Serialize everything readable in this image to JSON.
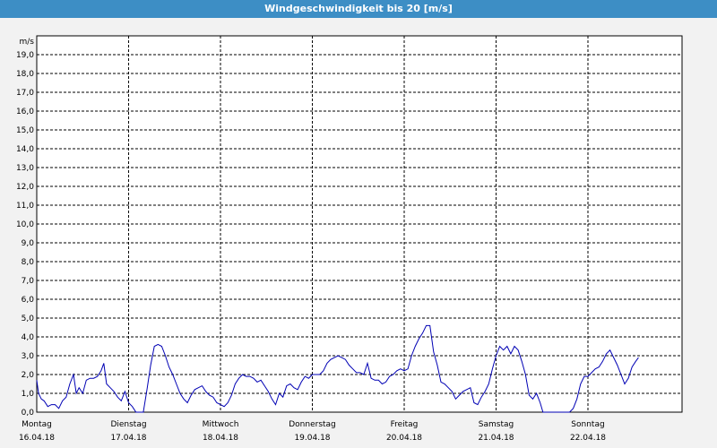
{
  "title": "Windgeschwindigkeit bis 20 [m/s]",
  "colors": {
    "titlebar": "#3d8ec5",
    "line": "#0000b4",
    "grid": "#000000",
    "plot_bg": "#ffffff"
  },
  "chart_data": {
    "type": "line",
    "title": "Windgeschwindigkeit bis 20 [m/s]",
    "ylabel": "m/s",
    "ylim": [
      0,
      20
    ],
    "yticks": [
      "0,0",
      "1,0",
      "2,0",
      "3,0",
      "4,0",
      "5,0",
      "6,0",
      "7,0",
      "8,0",
      "9,0",
      "10,0",
      "11,0",
      "12,0",
      "13,0",
      "14,0",
      "15,0",
      "16,0",
      "17,0",
      "18,0",
      "19,0"
    ],
    "grid": true,
    "xlim_days": [
      0,
      7
    ],
    "days": [
      {
        "weekday": "Montag",
        "date": "16.04.18"
      },
      {
        "weekday": "Dienstag",
        "date": "17.04.18"
      },
      {
        "weekday": "Mittwoch",
        "date": "18.04.18"
      },
      {
        "weekday": "Donnerstag",
        "date": "19.04.18"
      },
      {
        "weekday": "Freitag",
        "date": "20.04.18"
      },
      {
        "weekday": "Samstag",
        "date": "21.04.18"
      },
      {
        "weekday": "Sonntag",
        "date": "22.04.18"
      }
    ],
    "series": [
      {
        "points": [
          [
            0.0,
            1.7
          ],
          [
            0.02,
            1.0
          ],
          [
            0.05,
            0.7
          ],
          [
            0.08,
            0.6
          ],
          [
            0.12,
            0.3
          ],
          [
            0.16,
            0.4
          ],
          [
            0.2,
            0.4
          ],
          [
            0.24,
            0.2
          ],
          [
            0.28,
            0.6
          ],
          [
            0.32,
            0.8
          ],
          [
            0.36,
            1.5
          ],
          [
            0.4,
            2.0
          ],
          [
            0.43,
            1.0
          ],
          [
            0.46,
            1.3
          ],
          [
            0.5,
            1.0
          ],
          [
            0.54,
            1.7
          ],
          [
            0.58,
            1.8
          ],
          [
            0.62,
            1.8
          ],
          [
            0.66,
            1.9
          ],
          [
            0.7,
            2.2
          ],
          [
            0.73,
            2.6
          ],
          [
            0.76,
            1.5
          ],
          [
            0.8,
            1.3
          ],
          [
            0.84,
            1.1
          ],
          [
            0.88,
            0.8
          ],
          [
            0.92,
            0.6
          ],
          [
            0.96,
            1.1
          ],
          [
            1.0,
            0.5
          ],
          [
            1.04,
            0.3
          ],
          [
            1.08,
            0.0
          ],
          [
            1.12,
            0.0
          ],
          [
            1.16,
            0.0
          ],
          [
            1.2,
            1.2
          ],
          [
            1.24,
            2.5
          ],
          [
            1.28,
            3.5
          ],
          [
            1.32,
            3.6
          ],
          [
            1.36,
            3.5
          ],
          [
            1.4,
            3.0
          ],
          [
            1.44,
            2.4
          ],
          [
            1.48,
            2.0
          ],
          [
            1.52,
            1.5
          ],
          [
            1.56,
            1.0
          ],
          [
            1.6,
            0.7
          ],
          [
            1.64,
            0.5
          ],
          [
            1.68,
            0.9
          ],
          [
            1.72,
            1.2
          ],
          [
            1.76,
            1.3
          ],
          [
            1.8,
            1.4
          ],
          [
            1.84,
            1.1
          ],
          [
            1.88,
            0.9
          ],
          [
            1.92,
            0.8
          ],
          [
            1.96,
            0.5
          ],
          [
            2.0,
            0.4
          ],
          [
            2.04,
            0.3
          ],
          [
            2.08,
            0.5
          ],
          [
            2.12,
            0.9
          ],
          [
            2.16,
            1.5
          ],
          [
            2.2,
            1.8
          ],
          [
            2.24,
            2.0
          ],
          [
            2.28,
            1.9
          ],
          [
            2.32,
            1.9
          ],
          [
            2.36,
            1.8
          ],
          [
            2.4,
            1.6
          ],
          [
            2.44,
            1.7
          ],
          [
            2.48,
            1.4
          ],
          [
            2.52,
            1.1
          ],
          [
            2.56,
            0.7
          ],
          [
            2.6,
            0.4
          ],
          [
            2.64,
            1.0
          ],
          [
            2.68,
            0.8
          ],
          [
            2.72,
            1.4
          ],
          [
            2.76,
            1.5
          ],
          [
            2.8,
            1.3
          ],
          [
            2.84,
            1.2
          ],
          [
            2.88,
            1.6
          ],
          [
            2.92,
            1.9
          ],
          [
            2.96,
            1.8
          ],
          [
            3.0,
            2.0
          ],
          [
            3.04,
            2.0
          ],
          [
            3.08,
            2.0
          ],
          [
            3.12,
            2.2
          ],
          [
            3.16,
            2.6
          ],
          [
            3.2,
            2.8
          ],
          [
            3.24,
            2.9
          ],
          [
            3.28,
            3.0
          ],
          [
            3.32,
            2.9
          ],
          [
            3.36,
            2.8
          ],
          [
            3.4,
            2.5
          ],
          [
            3.44,
            2.3
          ],
          [
            3.48,
            2.1
          ],
          [
            3.52,
            2.1
          ],
          [
            3.56,
            2.0
          ],
          [
            3.6,
            2.6
          ],
          [
            3.64,
            1.8
          ],
          [
            3.68,
            1.7
          ],
          [
            3.72,
            1.7
          ],
          [
            3.76,
            1.5
          ],
          [
            3.8,
            1.6
          ],
          [
            3.84,
            1.9
          ],
          [
            3.88,
            2.0
          ],
          [
            3.92,
            2.2
          ],
          [
            3.96,
            2.3
          ],
          [
            4.0,
            2.2
          ],
          [
            4.04,
            2.3
          ],
          [
            4.08,
            3.0
          ],
          [
            4.12,
            3.5
          ],
          [
            4.16,
            3.9
          ],
          [
            4.2,
            4.2
          ],
          [
            4.24,
            4.6
          ],
          [
            4.28,
            4.6
          ],
          [
            4.32,
            3.2
          ],
          [
            4.36,
            2.5
          ],
          [
            4.4,
            1.6
          ],
          [
            4.44,
            1.5
          ],
          [
            4.48,
            1.3
          ],
          [
            4.52,
            1.1
          ],
          [
            4.56,
            0.7
          ],
          [
            4.6,
            0.9
          ],
          [
            4.64,
            1.1
          ],
          [
            4.68,
            1.2
          ],
          [
            4.72,
            1.3
          ],
          [
            4.76,
            0.5
          ],
          [
            4.8,
            0.4
          ],
          [
            4.84,
            0.8
          ],
          [
            4.88,
            1.1
          ],
          [
            4.92,
            1.5
          ],
          [
            4.96,
            2.3
          ],
          [
            5.0,
            3.0
          ],
          [
            5.04,
            3.5
          ],
          [
            5.08,
            3.3
          ],
          [
            5.12,
            3.5
          ],
          [
            5.16,
            3.1
          ],
          [
            5.2,
            3.5
          ],
          [
            5.24,
            3.3
          ],
          [
            5.28,
            2.7
          ],
          [
            5.32,
            2.0
          ],
          [
            5.36,
            0.9
          ],
          [
            5.4,
            0.7
          ],
          [
            5.44,
            1.0
          ],
          [
            5.48,
            0.5
          ],
          [
            5.51,
            0.0
          ],
          [
            5.55,
            0.0
          ],
          [
            5.6,
            0.0
          ],
          [
            5.64,
            0.0
          ],
          [
            5.68,
            0.0
          ],
          [
            5.72,
            0.0
          ],
          [
            5.76,
            0.0
          ],
          [
            5.8,
            0.0
          ],
          [
            5.84,
            0.2
          ],
          [
            5.88,
            0.7
          ],
          [
            5.92,
            1.5
          ],
          [
            5.96,
            1.9
          ],
          [
            6.0,
            1.9
          ],
          [
            6.04,
            2.1
          ],
          [
            6.08,
            2.3
          ],
          [
            6.12,
            2.4
          ],
          [
            6.16,
            2.7
          ],
          [
            6.2,
            3.1
          ],
          [
            6.24,
            3.3
          ],
          [
            6.28,
            2.9
          ],
          [
            6.32,
            2.5
          ],
          [
            6.36,
            2.0
          ],
          [
            6.4,
            1.5
          ],
          [
            6.44,
            1.8
          ],
          [
            6.48,
            2.4
          ],
          [
            6.52,
            2.7
          ],
          [
            6.55,
            2.9
          ]
        ]
      }
    ]
  }
}
